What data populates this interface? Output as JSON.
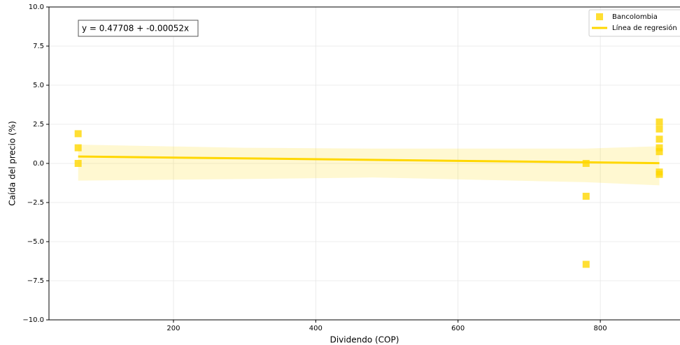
{
  "chart_data": {
    "type": "scatter",
    "x_label": "Dividendo (COP)",
    "y_label": "Caída del precio (%)",
    "annotation": "y = 0.47708 + -0.00052x",
    "xlim": [
      25,
      912
    ],
    "ylim": [
      -10,
      10
    ],
    "xticks": [
      200,
      400,
      600,
      800
    ],
    "yticks": [
      {
        "value": -10,
        "label": "−10.0"
      },
      {
        "value": -7.5,
        "label": "−7.5"
      },
      {
        "value": -5,
        "label": "−5.0"
      },
      {
        "value": -2.5,
        "label": "−2.5"
      },
      {
        "value": 0,
        "label": "0.0"
      },
      {
        "value": 2.5,
        "label": "2.5"
      },
      {
        "value": 5,
        "label": "5.0"
      },
      {
        "value": 7.5,
        "label": "7.5"
      },
      {
        "value": 10,
        "label": "10.0"
      }
    ],
    "grid": true,
    "legend": "upper right",
    "series": [
      {
        "name": "Bancolombia",
        "type": "scatter",
        "color": "#FFD700",
        "x": [
          66,
          66,
          66,
          780,
          780,
          780,
          883,
          883,
          883,
          883,
          883,
          883,
          883
        ],
        "values": [
          1.9,
          1.0,
          0.0,
          0.0,
          -2.1,
          -6.45,
          2.65,
          2.2,
          1.55,
          1.0,
          0.75,
          -0.55,
          -0.7
        ]
      },
      {
        "name": "Línea de regresión",
        "type": "line",
        "color": "#FFD700",
        "x": [
          66,
          883
        ],
        "values": [
          0.443,
          0.018
        ]
      }
    ],
    "band": {
      "color": "#FFD700",
      "x": [
        66,
        300,
        480,
        780,
        883
      ],
      "upper": [
        1.2,
        1.0,
        0.95,
        0.95,
        1.1
      ],
      "lower": [
        -1.1,
        -1.0,
        -0.9,
        -1.2,
        -1.4
      ]
    }
  }
}
